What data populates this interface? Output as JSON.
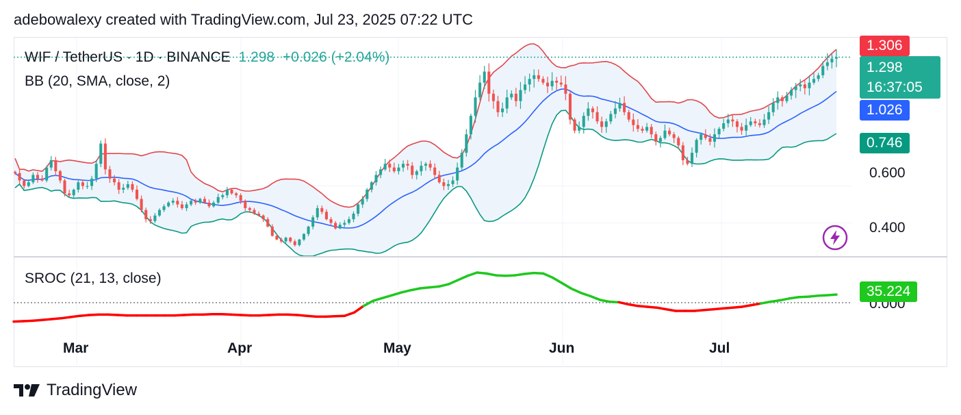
{
  "header": {
    "attribution": "adebowalexy created with TradingView.com, Jul 23, 2025 07:22 UTC"
  },
  "legend": {
    "symbol": "WIF / TetherUS · 1D · BINANCE",
    "last": "1.298",
    "change": "+0.026 (+2.04%)",
    "bb": "BB (20, SMA, close, 2)",
    "sroc": "SROC (21, 13, close)"
  },
  "price_tags": {
    "upper": "1.306",
    "last": "1.298",
    "countdown": "16:37:05",
    "middle": "1.026",
    "lower": "0.746",
    "sroc": "35.224"
  },
  "footer": {
    "brand": "TradingView"
  },
  "colors": {
    "up": "#26a69a",
    "down": "#ef5350",
    "bb_upper": "#e0474c",
    "bb_basis": "#2962ff",
    "bb_lower": "#089981",
    "bb_fill": "#eef4fb",
    "sroc_up": "#1ec81e",
    "sroc_down": "#ff0000"
  },
  "chart_data": [
    {
      "type": "candlestick",
      "title": "WIF / TetherUS · 1D · BINANCE",
      "x_ticks": [
        "Mar",
        "Apr",
        "May",
        "Jun",
        "Jul"
      ],
      "y_ticks": [
        "0.400",
        "0.600"
      ],
      "y_range": [
        0.22,
        1.4
      ],
      "series": [
        {
          "name": "close",
          "values": [
            0.67,
            0.63,
            0.6,
            0.62,
            0.66,
            0.64,
            0.63,
            0.7,
            0.74,
            0.68,
            0.63,
            0.56,
            0.55,
            0.58,
            0.62,
            0.6,
            0.6,
            0.64,
            0.72,
            0.83,
            0.69,
            0.64,
            0.62,
            0.58,
            0.59,
            0.61,
            0.58,
            0.53,
            0.47,
            0.42,
            0.41,
            0.44,
            0.47,
            0.49,
            0.51,
            0.52,
            0.5,
            0.48,
            0.5,
            0.52,
            0.51,
            0.53,
            0.51,
            0.49,
            0.51,
            0.54,
            0.55,
            0.58,
            0.56,
            0.55,
            0.52,
            0.48,
            0.47,
            0.45,
            0.44,
            0.42,
            0.38,
            0.33,
            0.31,
            0.3,
            0.32,
            0.3,
            0.28,
            0.31,
            0.34,
            0.38,
            0.43,
            0.48,
            0.46,
            0.42,
            0.4,
            0.37,
            0.39,
            0.4,
            0.42,
            0.45,
            0.5,
            0.53,
            0.58,
            0.62,
            0.66,
            0.69,
            0.72,
            0.7,
            0.68,
            0.7,
            0.72,
            0.71,
            0.66,
            0.68,
            0.71,
            0.72,
            0.7,
            0.66,
            0.62,
            0.6,
            0.61,
            0.63,
            0.7,
            0.78,
            0.88,
            0.98,
            1.08,
            1.16,
            1.22,
            1.1,
            1.06,
            1.0,
            1.02,
            1.08,
            1.1,
            1.06,
            1.12,
            1.15,
            1.18,
            1.2,
            1.18,
            1.16,
            1.14,
            1.17,
            1.16,
            1.15,
            1.1,
            0.96,
            0.9,
            0.92,
            0.98,
            1.02,
            1.0,
            0.95,
            0.92,
            0.95,
            0.99,
            1.02,
            1.05,
            1.0,
            0.96,
            0.93,
            0.91,
            0.9,
            0.92,
            0.88,
            0.84,
            0.86,
            0.9,
            0.88,
            0.86,
            0.82,
            0.74,
            0.72,
            0.78,
            0.85,
            0.88,
            0.86,
            0.84,
            0.88,
            0.91,
            0.94,
            0.96,
            0.95,
            0.92,
            0.9,
            0.93,
            0.95,
            0.94,
            0.93,
            0.96,
            1.0,
            1.05,
            1.08,
            1.06,
            1.09,
            1.12,
            1.14,
            1.15,
            1.13,
            1.16,
            1.18,
            1.2,
            1.25,
            1.27,
            1.29,
            1.298
          ]
        }
      ]
    },
    {
      "type": "line",
      "title": "SROC (21, 13, close)",
      "last_value": 35.224,
      "y_ticks": [
        "0.000"
      ],
      "series": [
        {
          "name": "SROC",
          "values": [
            -46,
            -45,
            -44,
            -42,
            -40,
            -38,
            -35,
            -32,
            -30,
            -29,
            -29,
            -30,
            -31,
            -31,
            -31,
            -31,
            -31,
            -31,
            -30,
            -29,
            -29,
            -28,
            -28,
            -29,
            -30,
            -31,
            -31,
            -30,
            -29,
            -29,
            -30,
            -32,
            -34,
            -34,
            -33,
            -32,
            -24,
            -8,
            8,
            20,
            32,
            44,
            54,
            62,
            66,
            70,
            80,
            98,
            116,
            130,
            126,
            118,
            116,
            118,
            124,
            128,
            126,
            108,
            84,
            60,
            42,
            28,
            12,
            4,
            2,
            -4,
            -8,
            -10,
            -12,
            -16,
            -20,
            -20,
            -20,
            -18,
            -16,
            -14,
            -12,
            -10,
            -6,
            -2,
            4,
            10,
            18,
            24,
            26,
            30,
            32,
            35.224
          ]
        }
      ]
    }
  ]
}
